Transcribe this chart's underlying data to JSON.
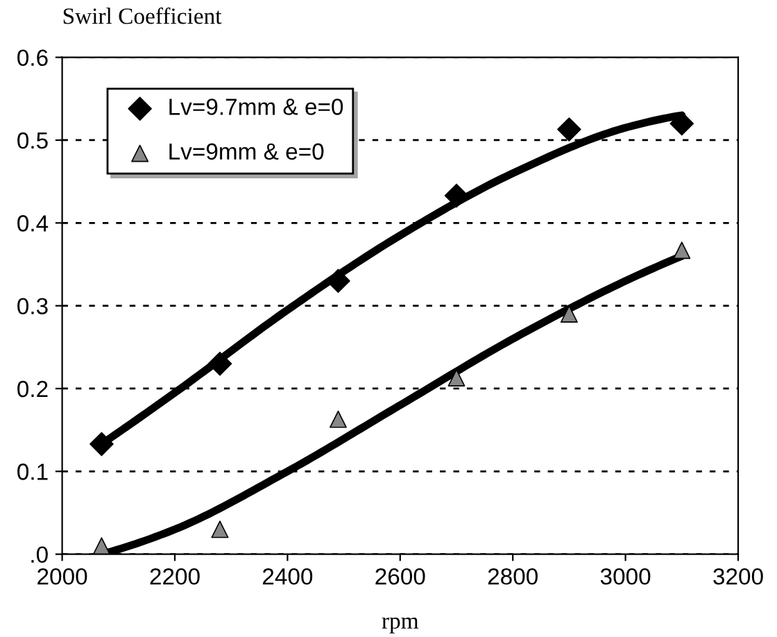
{
  "chart_data": {
    "type": "scatter",
    "ylabel": "Swirl Coefficient",
    "xlabel": "rpm",
    "xlim": [
      2000,
      3200
    ],
    "xticks": [
      2000,
      2200,
      2400,
      2600,
      2800,
      3000,
      3200
    ],
    "ylim": [
      0,
      0.6
    ],
    "yticks": [
      {
        "value": 0,
        "label": ".0"
      },
      {
        "value": 0.1,
        "label": "0.1"
      },
      {
        "value": 0.2,
        "label": "0.2"
      },
      {
        "value": 0.3,
        "label": "0.3"
      },
      {
        "value": 0.4,
        "label": "0.4"
      },
      {
        "value": 0.5,
        "label": "0.5"
      },
      {
        "value": 0.6,
        "label": "0.6"
      }
    ],
    "grid": "y",
    "legend": "top left",
    "series": [
      {
        "name": "Lv=9.7mm & e=0",
        "marker": "diamond",
        "color": "#000000",
        "x": [
          2070,
          2280,
          2490,
          2700,
          2900,
          3100
        ],
        "values": [
          0.133,
          0.23,
          0.33,
          0.433,
          0.513,
          0.52
        ]
      },
      {
        "name": "Lv=9mm & e=0",
        "marker": "triangle",
        "color": "#888888",
        "x": [
          2070,
          2280,
          2490,
          2700,
          2900,
          3100
        ],
        "values": [
          0.01,
          0.03,
          0.163,
          0.213,
          0.29,
          0.367
        ]
      },
      {
        "type": "line",
        "marker": "none",
        "color": "#000000",
        "x": [
          2070,
          2200,
          2400,
          2600,
          2800,
          3000,
          3100
        ],
        "values": [
          0.133,
          0.195,
          0.295,
          0.385,
          0.46,
          0.515,
          0.53
        ]
      },
      {
        "type": "line",
        "marker": "none",
        "color": "#000000",
        "x": [
          2070,
          2200,
          2400,
          2600,
          2800,
          3000,
          3100
        ],
        "values": [
          0.0,
          0.03,
          0.1,
          0.18,
          0.26,
          0.33,
          0.36
        ]
      }
    ]
  }
}
